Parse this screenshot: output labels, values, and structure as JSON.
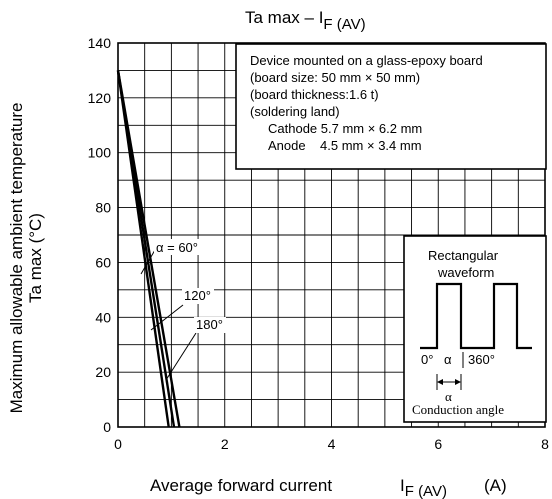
{
  "chart_data": {
    "type": "line",
    "title": "Ta max – I",
    "title_sub": "F (AV)",
    "xlabel": "Average forward current",
    "xlabel_symbol": "I",
    "xlabel_sub": "F (AV)",
    "xlabel_unit": "(A)",
    "ylabel_line1": "Maximum allowable ambient temperature",
    "ylabel_line2": "Ta max     (°C)",
    "xlim": [
      0,
      8
    ],
    "ylim": [
      0,
      140
    ],
    "x_ticks": [
      "0",
      "2",
      "4",
      "6",
      "8"
    ],
    "y_ticks": [
      "0",
      "20",
      "40",
      "60",
      "80",
      "100",
      "120",
      "140"
    ],
    "grid": true,
    "series": [
      {
        "name": "α = 60°",
        "x": [
          0,
          0.95
        ],
        "y": [
          130,
          0
        ]
      },
      {
        "name": "120°",
        "x": [
          0,
          1.05
        ],
        "y": [
          130,
          0
        ]
      },
      {
        "name": "180°",
        "x": [
          0,
          1.15
        ],
        "y": [
          130,
          0
        ]
      }
    ],
    "note_lines": [
      "Device mounted on a glass-epoxy board",
      "(board size: 50 mm × 50 mm)",
      "(board thickness:1.6 t)",
      "(soldering land)",
      "Cathode 5.7 mm × 6.2 mm",
      "Anode    4.5 mm × 3.4 mm"
    ],
    "inset": {
      "title_line1": "Rectangular",
      "title_line2": "waveform",
      "label_zero": "0°",
      "label_alpha": "α",
      "label_360": "360°",
      "label_alpha_below": "α",
      "label_conduction": "Conduction angle"
    }
  }
}
